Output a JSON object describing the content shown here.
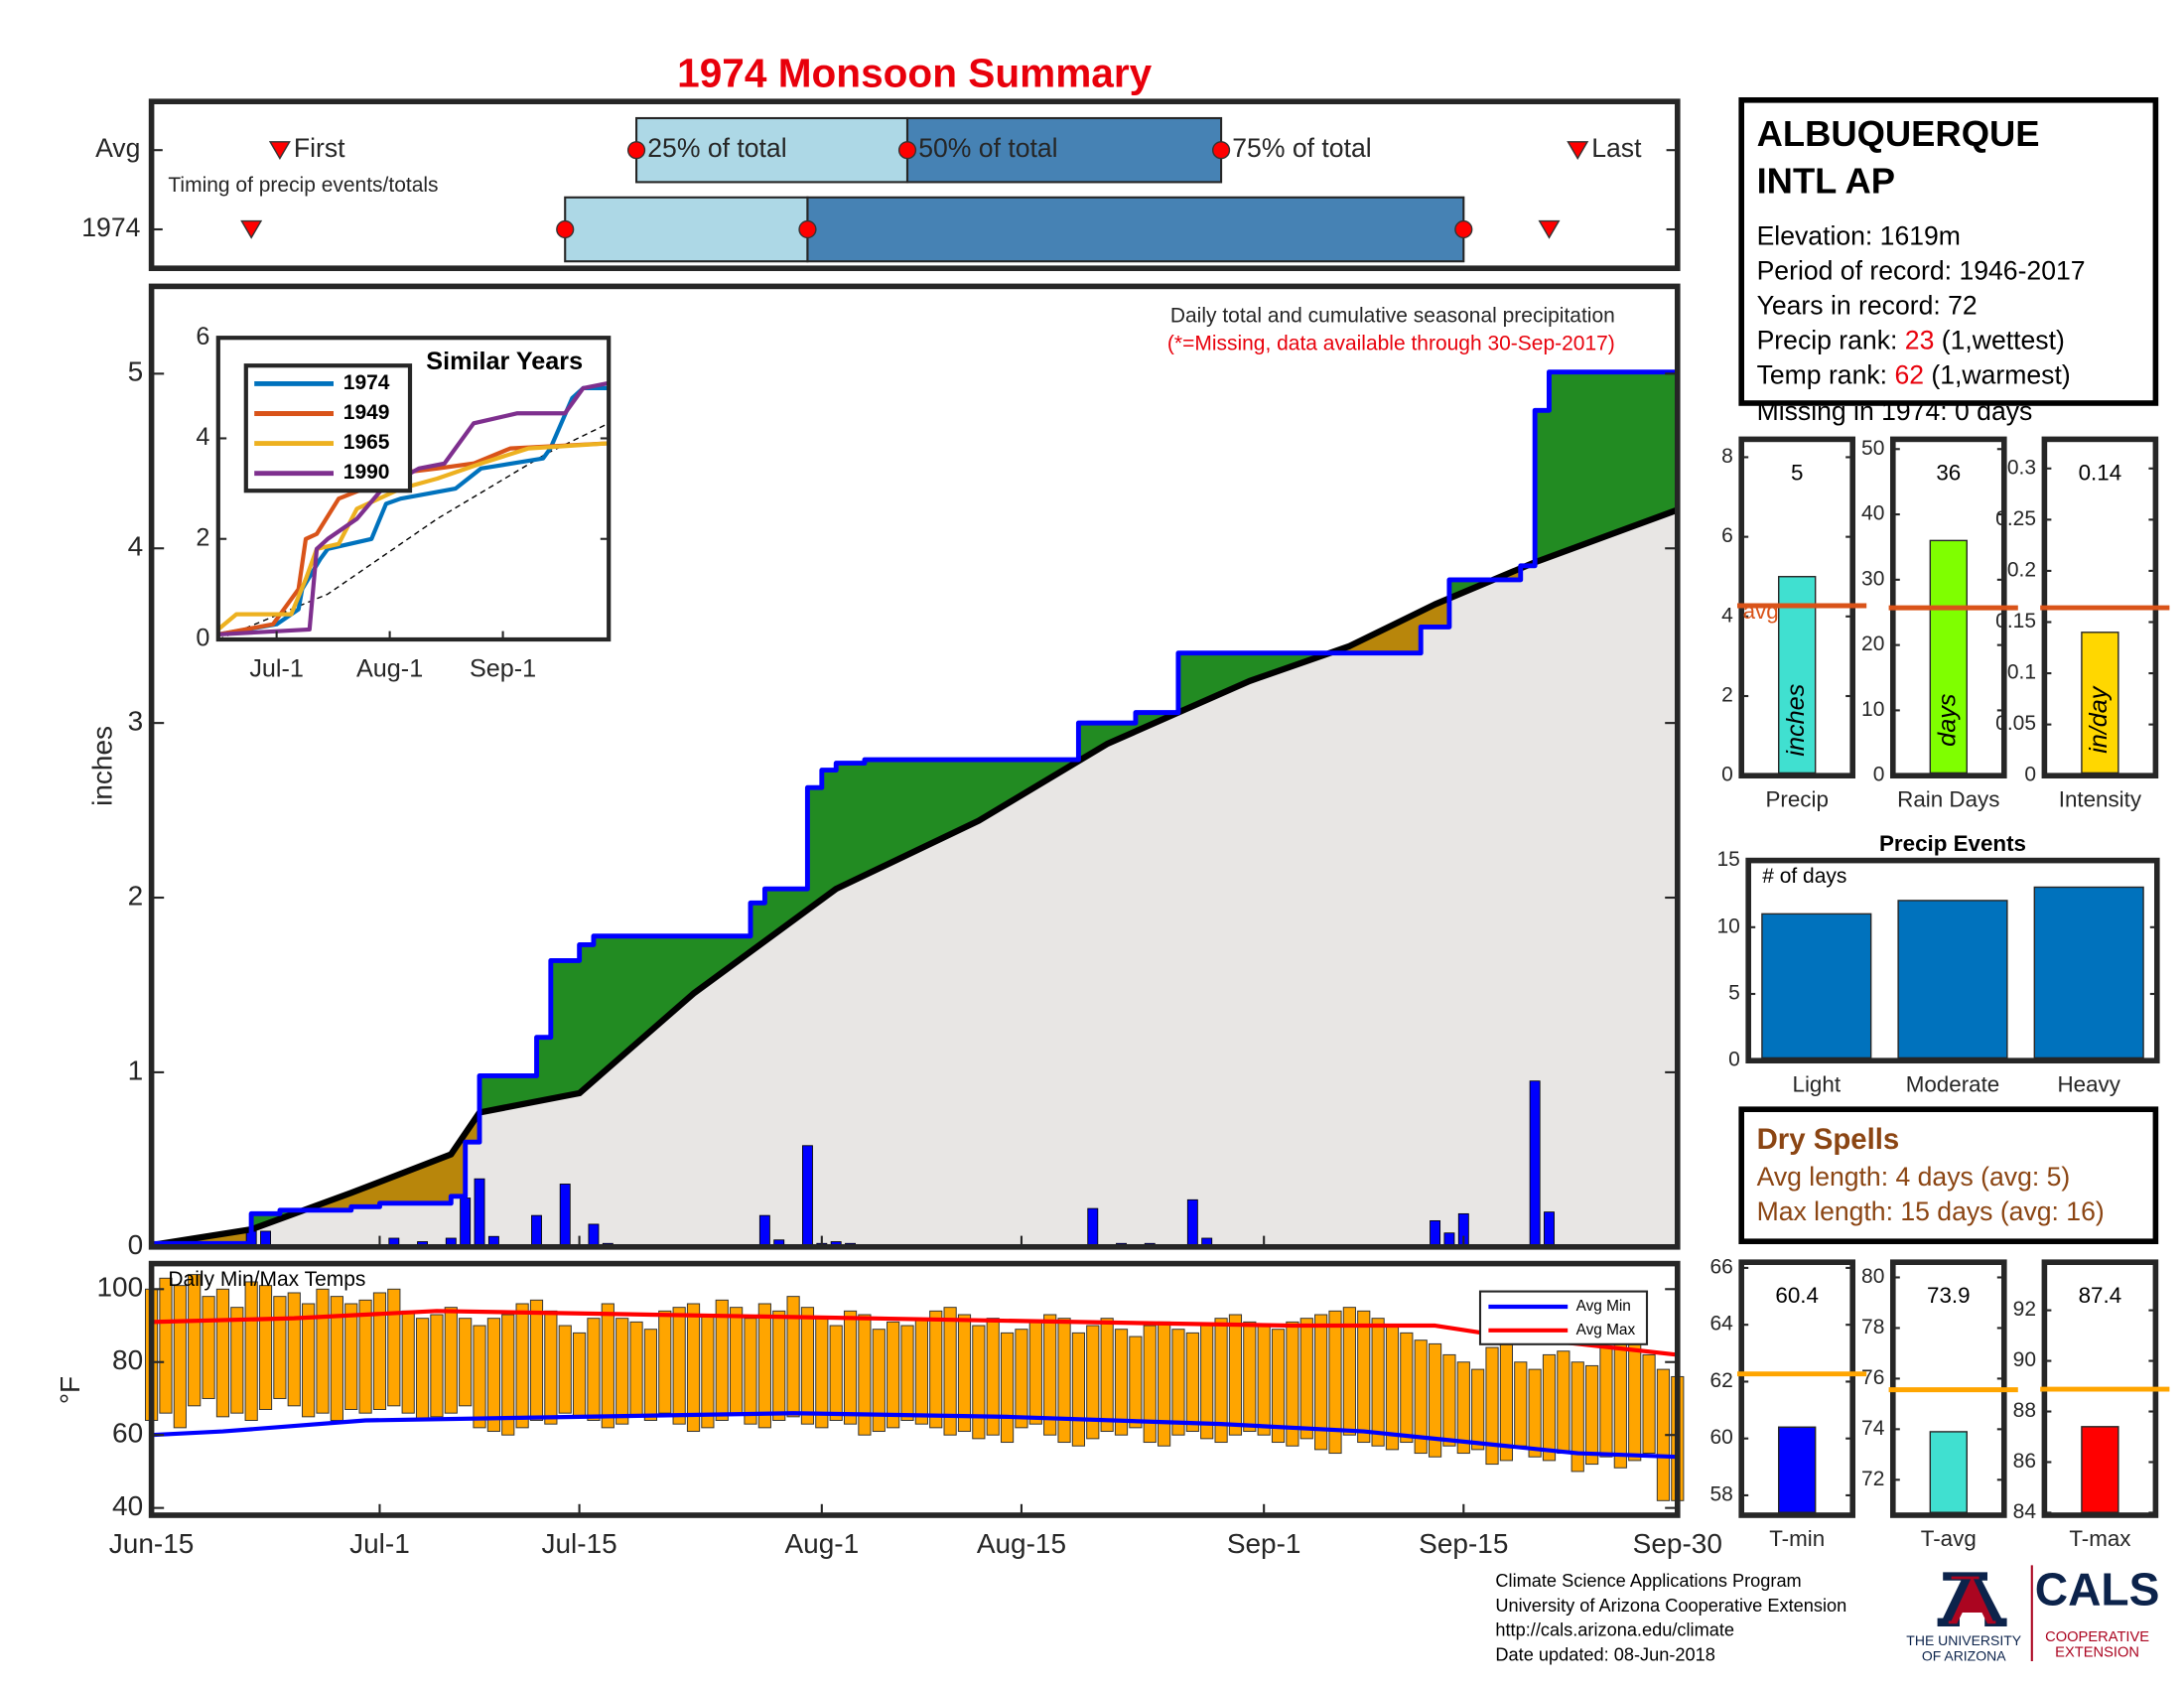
{
  "title": "1974 Monsoon Summary",
  "station": {
    "name": [
      "ALBUQUERQUE",
      "INTL AP"
    ],
    "lines": [
      "Elevation: 1619m",
      "Period of record: 1946-2017",
      "Years in record: 72"
    ],
    "precip_rank": {
      "label": "Precip rank:",
      "value": 23,
      "note": "(1,wettest)"
    },
    "temp_rank": {
      "label": "Temp rank:",
      "value": 62,
      "note": "(1,warmest)"
    },
    "missing": "Missing in 1974: 0 days"
  },
  "dry_spells": {
    "title": "Dry Spells",
    "lines": [
      "Avg length: 4 days (avg: 5)",
      "Max length: 15 days (avg: 16)"
    ]
  },
  "footer": [
    "Climate Science Applications Program",
    "University of Arizona Cooperative Extension",
    "http://cals.arizona.edu/climate",
    "Date updated: 08-Jun-2018"
  ],
  "logo": {
    "university": [
      "THE UNIVERSITY",
      "OF ARIZONA"
    ],
    "cals": "CALS",
    "extension": [
      "COOPERATIVE",
      "EXTENSION"
    ]
  },
  "chart_data": [
    {
      "type": "timing",
      "note": "Timing of precip events/totals",
      "xlim": [
        0,
        107
      ],
      "markers": [
        "First",
        "25% of total",
        "50% of total",
        "75% of total",
        "Last"
      ],
      "light_color": "#add8e6",
      "dark_color": "#4682b4",
      "marker_color": "#ff0000",
      "rows": [
        {
          "name": "Avg",
          "values": [
            9,
            34,
            53,
            75,
            100
          ]
        },
        {
          "name": "1974",
          "values": [
            7,
            29,
            46,
            92,
            98
          ]
        }
      ]
    },
    {
      "type": "area",
      "annotation": "Daily total and cumulative seasonal precipitation",
      "note": "(*=Missing, data available through 30-Sep-2017)",
      "ylabel": "inches",
      "xlim": [
        0,
        107
      ],
      "ylim": [
        0,
        5.5
      ],
      "yticks": [
        0,
        1,
        2,
        3,
        4,
        5
      ],
      "above_color": "#228b22",
      "below_color": "#b8860b",
      "base_color": "#e8e6e4",
      "cumulative": {
        "color": "#0000ff",
        "x": [
          0,
          7,
          7,
          9,
          9,
          14,
          14,
          16,
          16,
          21,
          21,
          22,
          22,
          23,
          23,
          27,
          27,
          28,
          28,
          30,
          30,
          31,
          31,
          42,
          42,
          43,
          43,
          46,
          46,
          47,
          47,
          48,
          48,
          50,
          50,
          65,
          65,
          69,
          69,
          72,
          72,
          89,
          89,
          91,
          91,
          96,
          96,
          97,
          97,
          98,
          98,
          107
        ],
        "values": [
          0.02,
          0.02,
          0.19,
          0.19,
          0.21,
          0.21,
          0.23,
          0.23,
          0.25,
          0.25,
          0.29,
          0.29,
          0.6,
          0.6,
          0.98,
          0.98,
          1.2,
          1.2,
          1.64,
          1.64,
          1.73,
          1.73,
          1.78,
          1.78,
          1.97,
          1.97,
          2.05,
          2.05,
          2.63,
          2.63,
          2.73,
          2.73,
          2.77,
          2.77,
          2.79,
          2.79,
          3.0,
          3.0,
          3.06,
          3.06,
          3.4,
          3.4,
          3.55,
          3.55,
          3.82,
          3.82,
          3.9,
          3.9,
          4.79,
          4.79,
          5.01,
          5.01
        ]
      },
      "average": {
        "color": "#000000",
        "x": [
          0,
          7,
          14,
          21,
          23,
          30,
          38,
          48,
          58,
          67,
          77,
          84,
          90,
          97,
          107
        ],
        "values": [
          0.01,
          0.1,
          0.31,
          0.53,
          0.77,
          0.88,
          1.45,
          2.05,
          2.44,
          2.88,
          3.24,
          3.44,
          3.68,
          3.92,
          4.22
        ]
      },
      "daily": {
        "color": "#0000ff",
        "x": [
          7,
          8,
          17,
          19,
          21,
          22,
          23,
          24,
          27,
          29,
          31,
          32,
          43,
          44,
          46,
          47,
          48,
          49,
          66,
          68,
          70,
          73,
          74,
          90,
          91,
          92,
          95,
          97,
          98
        ],
        "values": [
          0.09,
          0.09,
          0.05,
          0.03,
          0.05,
          0.28,
          0.39,
          0.06,
          0.18,
          0.36,
          0.13,
          0.02,
          0.18,
          0.04,
          0.58,
          0.02,
          0.03,
          0.02,
          0.22,
          0.02,
          0.02,
          0.27,
          0.05,
          0.15,
          0.08,
          0.19,
          0.01,
          0.95,
          0.2
        ]
      }
    },
    {
      "type": "line",
      "title": "Similar Years",
      "xlim": [
        0,
        107
      ],
      "ylim": [
        0,
        6
      ],
      "yticks": [
        0,
        2,
        4,
        6
      ],
      "xticks": [
        {
          "value": 16,
          "label": "Jul-1"
        },
        {
          "value": 47,
          "label": "Aug-1"
        },
        {
          "value": 78,
          "label": "Sep-1"
        }
      ],
      "series": [
        {
          "name": "1974",
          "color": "#0072bd",
          "x": [
            0,
            16,
            22,
            23,
            28,
            30,
            42,
            46,
            50,
            65,
            72,
            89,
            91,
            97,
            100,
            107
          ],
          "values": [
            0.1,
            0.3,
            0.6,
            1.0,
            1.6,
            1.8,
            2.0,
            2.7,
            2.8,
            3.0,
            3.4,
            3.6,
            3.8,
            4.8,
            5.0,
            5.0
          ]
        },
        {
          "name": "1949",
          "color": "#d95319",
          "x": [
            0,
            15,
            22,
            24,
            27,
            33,
            40,
            48,
            60,
            70,
            80,
            107
          ],
          "values": [
            0.1,
            0.3,
            1.0,
            2.0,
            2.1,
            2.8,
            3.0,
            3.3,
            3.4,
            3.5,
            3.8,
            3.9
          ]
        },
        {
          "name": "1965",
          "color": "#edb120",
          "x": [
            0,
            5,
            20,
            24,
            27,
            33,
            38,
            50,
            60,
            72,
            85,
            107
          ],
          "values": [
            0.2,
            0.5,
            0.5,
            1.2,
            1.8,
            1.9,
            2.6,
            3.0,
            3.2,
            3.5,
            3.8,
            3.9
          ]
        },
        {
          "name": "1990",
          "color": "#7e2f8e",
          "x": [
            0,
            25,
            27,
            30,
            38,
            45,
            55,
            62,
            70,
            82,
            95,
            100,
            107
          ],
          "values": [
            0.1,
            0.2,
            1.8,
            2.0,
            2.4,
            3.0,
            3.4,
            3.5,
            4.3,
            4.5,
            4.5,
            5.0,
            5.1
          ]
        }
      ],
      "reference": {
        "color": "#000000",
        "x": [
          0,
          30,
          60,
          90,
          107
        ],
        "values": [
          0,
          0.9,
          2.4,
          3.7,
          4.3
        ]
      }
    },
    {
      "type": "range",
      "title": "Daily Min/Max Temps",
      "ylabel": "°F",
      "xlim": [
        0,
        107
      ],
      "ylim": [
        38,
        107
      ],
      "yticks": [
        40,
        60,
        80,
        100
      ],
      "xticks": [
        {
          "value": 0,
          "label": "Jun-15"
        },
        {
          "value": 16,
          "label": "Jul-1"
        },
        {
          "value": 30,
          "label": "Jul-15"
        },
        {
          "value": 47,
          "label": "Aug-1"
        },
        {
          "value": 61,
          "label": "Aug-15"
        },
        {
          "value": 78,
          "label": "Sep-1"
        },
        {
          "value": 92,
          "label": "Sep-15"
        },
        {
          "value": 107,
          "label": "Sep-30"
        }
      ],
      "color": "#ffa500",
      "x": [
        0,
        1,
        2,
        3,
        4,
        5,
        6,
        7,
        8,
        9,
        10,
        11,
        12,
        13,
        14,
        15,
        16,
        17,
        18,
        19,
        20,
        21,
        22,
        23,
        24,
        25,
        26,
        27,
        28,
        29,
        30,
        31,
        32,
        33,
        34,
        35,
        36,
        37,
        38,
        39,
        40,
        41,
        42,
        43,
        44,
        45,
        46,
        47,
        48,
        49,
        50,
        51,
        52,
        53,
        54,
        55,
        56,
        57,
        58,
        59,
        60,
        61,
        62,
        63,
        64,
        65,
        66,
        67,
        68,
        69,
        70,
        71,
        72,
        73,
        74,
        75,
        76,
        77,
        78,
        79,
        80,
        81,
        82,
        83,
        84,
        85,
        86,
        87,
        88,
        89,
        90,
        91,
        92,
        93,
        94,
        95,
        96,
        97,
        98,
        99,
        100,
        101,
        102,
        103,
        104,
        105,
        106,
        107
      ],
      "lows": [
        64,
        66,
        62,
        68,
        70,
        65,
        66,
        64,
        67,
        70,
        68,
        65,
        66,
        64,
        67,
        66,
        67,
        68,
        66,
        64,
        65,
        66,
        68,
        62,
        61,
        60,
        62,
        64,
        63,
        66,
        65,
        64,
        62,
        63,
        65,
        64,
        66,
        63,
        61,
        62,
        64,
        66,
        63,
        62,
        64,
        65,
        63,
        62,
        64,
        63,
        60,
        61,
        62,
        64,
        63,
        62,
        60,
        61,
        59,
        60,
        58,
        62,
        63,
        60,
        58,
        57,
        59,
        61,
        60,
        62,
        58,
        57,
        60,
        61,
        59,
        58,
        60,
        61,
        60,
        58,
        57,
        59,
        56,
        55,
        60,
        58,
        57,
        56,
        58,
        55,
        54,
        57,
        55,
        56,
        52,
        53,
        57,
        54,
        53,
        55,
        50,
        52,
        54,
        51,
        53,
        55,
        42,
        42
      ],
      "highs": [
        100,
        103,
        101,
        104,
        98,
        100,
        95,
        102,
        101,
        98,
        99,
        96,
        100,
        98,
        96,
        97,
        99,
        100,
        94,
        92,
        93,
        95,
        92,
        90,
        92,
        93,
        96,
        97,
        94,
        90,
        88,
        92,
        96,
        92,
        91,
        89,
        94,
        95,
        96,
        93,
        97,
        95,
        92,
        96,
        94,
        98,
        95,
        92,
        90,
        94,
        93,
        89,
        91,
        90,
        92,
        94,
        95,
        93,
        90,
        92,
        88,
        89,
        91,
        93,
        92,
        88,
        90,
        92,
        89,
        87,
        90,
        91,
        89,
        88,
        90,
        92,
        93,
        91,
        90,
        89,
        91,
        92,
        93,
        94,
        95,
        94,
        92,
        90,
        88,
        86,
        85,
        82,
        80,
        78,
        84,
        86,
        80,
        78,
        82,
        83,
        80,
        79,
        84,
        86,
        85,
        82,
        78,
        76
      ],
      "series": [
        {
          "name": "Avg Min",
          "color": "#0000ff",
          "x": [
            0,
            5,
            15,
            30,
            45,
            60,
            75,
            85,
            95,
            100,
            107
          ],
          "values": [
            60,
            61,
            64,
            65,
            66,
            65,
            63,
            61,
            57,
            55,
            54
          ]
        },
        {
          "name": "Avg Max",
          "color": "#ff0000",
          "x": [
            0,
            10,
            20,
            35,
            50,
            65,
            80,
            90,
            95,
            100,
            107
          ],
          "values": [
            91,
            92,
            94,
            93,
            92,
            91,
            90,
            90,
            87,
            85,
            82
          ]
        }
      ]
    },
    {
      "type": "bar",
      "categories": [
        "Precip"
      ],
      "values": [
        5
      ],
      "bar_label": "inches",
      "color": "#40e0d0",
      "data_labels": true,
      "average": 4.27,
      "average_label": "avg",
      "average_color": "#d95319",
      "ylim": [
        0,
        8.45
      ],
      "yticks": [
        0,
        2,
        4,
        6,
        8
      ]
    },
    {
      "type": "bar",
      "categories": [
        "Rain Days"
      ],
      "values": [
        36
      ],
      "bar_label": "days",
      "color": "#7fff00",
      "data_labels": true,
      "average": 25.7,
      "average_color": "#d95319",
      "ylim": [
        0,
        51.5
      ],
      "yticks": [
        0,
        10,
        20,
        30,
        40,
        50
      ]
    },
    {
      "type": "bar",
      "categories": [
        "Intensity"
      ],
      "values": [
        0.14
      ],
      "bar_label": "in/day",
      "color": "#ffd700",
      "data_labels": true,
      "average": 0.164,
      "average_color": "#d95319",
      "ylim": [
        0,
        0.3285
      ],
      "yticks": [
        0,
        0.05,
        0.1,
        0.15,
        0.2,
        0.25,
        0.3
      ]
    },
    {
      "type": "bar",
      "title": "Precip Events",
      "note": "# of days",
      "categories": [
        "Light",
        "Moderate",
        "Heavy"
      ],
      "values": [
        11,
        12,
        13
      ],
      "color": "#0072bd",
      "ylim": [
        0,
        15
      ],
      "yticks": [
        0,
        5,
        10,
        15
      ]
    },
    {
      "type": "bar",
      "categories": [
        "T-min"
      ],
      "values": [
        60.4
      ],
      "color": "#0000ff",
      "data_labels": true,
      "average": 62.27,
      "average_color": "#ffa500",
      "ylim": [
        57.3,
        66.2
      ],
      "yticks": [
        58,
        60,
        62,
        64,
        66
      ]
    },
    {
      "type": "bar",
      "categories": [
        "T-avg"
      ],
      "values": [
        73.9
      ],
      "color": "#40e0d0",
      "data_labels": true,
      "average": 75.56,
      "average_color": "#ffa500",
      "ylim": [
        70.6,
        80.6
      ],
      "yticks": [
        72,
        74,
        76,
        78,
        80
      ]
    },
    {
      "type": "bar",
      "categories": [
        "T-max"
      ],
      "values": [
        87.4
      ],
      "color": "#ff0000",
      "data_labels": true,
      "average": 88.88,
      "average_color": "#ffa500",
      "ylim": [
        83.9,
        93.9
      ],
      "yticks": [
        84,
        86,
        88,
        90,
        92
      ]
    }
  ]
}
